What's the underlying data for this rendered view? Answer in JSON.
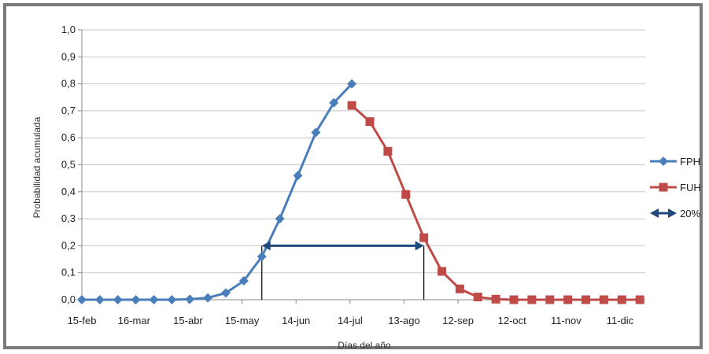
{
  "chart_data": {
    "type": "line",
    "xlabel": "Días del año",
    "ylabel": "Probabilidad acumulada",
    "ylim": [
      0,
      1
    ],
    "yticks": [
      "0,0",
      "0,1",
      "0,2",
      "0,3",
      "0,4",
      "0,5",
      "0,6",
      "0,7",
      "0,8",
      "0,9",
      "1,0"
    ],
    "xlim": [
      "15-feb",
      "25-dic"
    ],
    "xticks": [
      {
        "date": "15-feb",
        "label": "15-feb"
      },
      {
        "date": "16-mar",
        "label": "16-mar"
      },
      {
        "date": "15-abr",
        "label": "15-abr"
      },
      {
        "date": "15-may",
        "label": "15-may"
      },
      {
        "date": "14-jun",
        "label": "14-jun"
      },
      {
        "date": "14-jul",
        "label": "14-jul"
      },
      {
        "date": "13-ago",
        "label": "13-ago"
      },
      {
        "date": "12-sep",
        "label": "12-sep"
      },
      {
        "date": "12-oct",
        "label": "12-oct"
      },
      {
        "date": "11-nov",
        "label": "11-nov"
      },
      {
        "date": "11-dic",
        "label": "11-dic"
      }
    ],
    "grid": "horizontal",
    "legend_position": "right",
    "series": [
      {
        "name": "FPH",
        "color": "#4a7ebb",
        "marker": "diamond",
        "points": [
          {
            "x": "15-feb",
            "y": 0.0
          },
          {
            "x": "25-feb",
            "y": 0.0
          },
          {
            "x": "7-mar",
            "y": 0.0
          },
          {
            "x": "17-mar",
            "y": 0.0
          },
          {
            "x": "27-mar",
            "y": 0.0
          },
          {
            "x": "6-abr",
            "y": 0.0
          },
          {
            "x": "16-abr",
            "y": 0.002
          },
          {
            "x": "26-abr",
            "y": 0.007
          },
          {
            "x": "6-may",
            "y": 0.025
          },
          {
            "x": "16-may",
            "y": 0.07
          },
          {
            "x": "26-may",
            "y": 0.16
          },
          {
            "x": "5-jun",
            "y": 0.3
          },
          {
            "x": "15-jun",
            "y": 0.46
          },
          {
            "x": "25-jun",
            "y": 0.62
          },
          {
            "x": "5-jul",
            "y": 0.73
          },
          {
            "x": "15-jul",
            "y": 0.8
          }
        ]
      },
      {
        "name": "FUH",
        "color": "#be4b48",
        "marker": "square",
        "points": [
          {
            "x": "15-jul",
            "y": 0.72
          },
          {
            "x": "25-jul",
            "y": 0.66
          },
          {
            "x": "4-ago",
            "y": 0.55
          },
          {
            "x": "14-ago",
            "y": 0.39
          },
          {
            "x": "24-ago",
            "y": 0.23
          },
          {
            "x": "3-sep",
            "y": 0.105
          },
          {
            "x": "13-sep",
            "y": 0.04
          },
          {
            "x": "23-sep",
            "y": 0.01
          },
          {
            "x": "3-oct",
            "y": 0.002
          },
          {
            "x": "13-oct",
            "y": 0.0
          },
          {
            "x": "23-oct",
            "y": 0.0
          },
          {
            "x": "2-nov",
            "y": 0.0
          },
          {
            "x": "12-nov",
            "y": 0.0
          },
          {
            "x": "22-nov",
            "y": 0.0
          },
          {
            "x": "2-dic",
            "y": 0.0
          },
          {
            "x": "12-dic",
            "y": 0.0
          },
          {
            "x": "22-dic",
            "y": 0.0
          }
        ]
      },
      {
        "name": "20%",
        "color": "#1f497d",
        "marker": "double-arrow",
        "points": [
          {
            "x": "26-may",
            "y": 0.2
          },
          {
            "x": "24-ago",
            "y": 0.2
          }
        ]
      }
    ],
    "annotations": [
      {
        "type": "vertical-line",
        "x": "26-may",
        "from_y": 0.0,
        "to_y": 0.2,
        "color": "#000000"
      },
      {
        "type": "vertical-line",
        "x": "24-ago",
        "from_y": 0.0,
        "to_y": 0.2,
        "color": "#000000"
      }
    ]
  }
}
